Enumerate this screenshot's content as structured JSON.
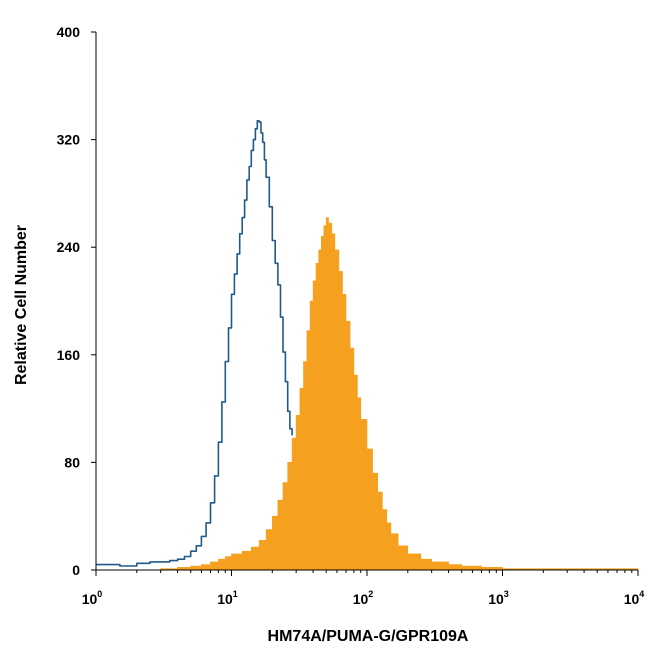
{
  "chart_data": {
    "type": "area",
    "xlabel": "HM74A/PUMA-G/GPR109A",
    "ylabel": "Relative Cell Number",
    "x_scale": "log",
    "xlim": [
      1,
      10000
    ],
    "ylim": [
      0,
      400
    ],
    "x_ticks": [
      {
        "base": "10",
        "exp": "0",
        "value": 1
      },
      {
        "base": "10",
        "exp": "1",
        "value": 10
      },
      {
        "base": "10",
        "exp": "2",
        "value": 100
      },
      {
        "base": "10",
        "exp": "3",
        "value": 1000
      },
      {
        "base": "10",
        "exp": "4",
        "value": 10000
      }
    ],
    "y_ticks": [
      "0",
      "80",
      "160",
      "240",
      "320",
      "400"
    ],
    "y_tick_values": [
      0,
      80,
      160,
      240,
      320,
      400
    ],
    "grid": false,
    "series": [
      {
        "style": "outline",
        "color": "#1f5a8c",
        "points": [
          [
            1.0,
            4
          ],
          [
            1.5,
            3
          ],
          [
            2.0,
            5
          ],
          [
            2.5,
            6
          ],
          [
            3.0,
            6
          ],
          [
            3.5,
            7
          ],
          [
            4.0,
            8
          ],
          [
            4.5,
            10
          ],
          [
            5.0,
            14
          ],
          [
            5.5,
            18
          ],
          [
            6.0,
            25
          ],
          [
            6.5,
            35
          ],
          [
            7.0,
            50
          ],
          [
            7.5,
            70
          ],
          [
            8.0,
            95
          ],
          [
            8.5,
            125
          ],
          [
            9.0,
            155
          ],
          [
            9.5,
            180
          ],
          [
            10.0,
            205
          ],
          [
            10.5,
            220
          ],
          [
            11.0,
            235
          ],
          [
            11.5,
            250
          ],
          [
            12.0,
            262
          ],
          [
            12.5,
            275
          ],
          [
            13.0,
            290
          ],
          [
            13.5,
            300
          ],
          [
            14.0,
            312
          ],
          [
            14.5,
            320
          ],
          [
            15.0,
            328
          ],
          [
            15.5,
            334
          ],
          [
            16.0,
            333
          ],
          [
            16.5,
            325
          ],
          [
            17.0,
            318
          ],
          [
            17.5,
            305
          ],
          [
            18.0,
            292
          ],
          [
            19.0,
            270
          ],
          [
            20.0,
            245
          ],
          [
            21.0,
            228
          ],
          [
            22.0,
            212
          ],
          [
            23.0,
            188
          ],
          [
            24.0,
            162
          ],
          [
            25.0,
            140
          ],
          [
            26.0,
            118
          ],
          [
            27.0,
            105
          ],
          [
            28.0,
            100
          ]
        ]
      },
      {
        "style": "filled",
        "color": "#f5a01f",
        "points": [
          [
            1.0,
            0
          ],
          [
            3.0,
            1
          ],
          [
            4.0,
            2
          ],
          [
            5.0,
            3
          ],
          [
            6.0,
            4
          ],
          [
            7.0,
            6
          ],
          [
            8.0,
            8
          ],
          [
            9.0,
            10
          ],
          [
            10.0,
            12
          ],
          [
            12.0,
            14
          ],
          [
            14.0,
            17
          ],
          [
            16.0,
            22
          ],
          [
            18.0,
            30
          ],
          [
            20.0,
            40
          ],
          [
            22.0,
            52
          ],
          [
            24.0,
            65
          ],
          [
            26.0,
            80
          ],
          [
            28.0,
            98
          ],
          [
            30.0,
            115
          ],
          [
            32.0,
            135
          ],
          [
            34.0,
            155
          ],
          [
            36.0,
            178
          ],
          [
            38.0,
            200
          ],
          [
            40.0,
            215
          ],
          [
            42.0,
            228
          ],
          [
            44.0,
            238
          ],
          [
            46.0,
            248
          ],
          [
            48.0,
            256
          ],
          [
            50.0,
            262
          ],
          [
            52.0,
            258
          ],
          [
            55.0,
            250
          ],
          [
            58.0,
            238
          ],
          [
            62.0,
            222
          ],
          [
            66.0,
            205
          ],
          [
            70.0,
            185
          ],
          [
            75.0,
            165
          ],
          [
            80.0,
            145
          ],
          [
            85.0,
            128
          ],
          [
            90.0,
            112
          ],
          [
            100.0,
            90
          ],
          [
            110.0,
            72
          ],
          [
            120.0,
            58
          ],
          [
            130.0,
            45
          ],
          [
            140.0,
            35
          ],
          [
            150.0,
            27
          ],
          [
            170.0,
            18
          ],
          [
            200.0,
            12
          ],
          [
            250.0,
            8
          ],
          [
            300.0,
            6
          ],
          [
            400.0,
            4
          ],
          [
            500.0,
            3
          ],
          [
            700.0,
            2
          ],
          [
            1000.0,
            1
          ],
          [
            10000.0,
            0
          ]
        ]
      }
    ]
  }
}
